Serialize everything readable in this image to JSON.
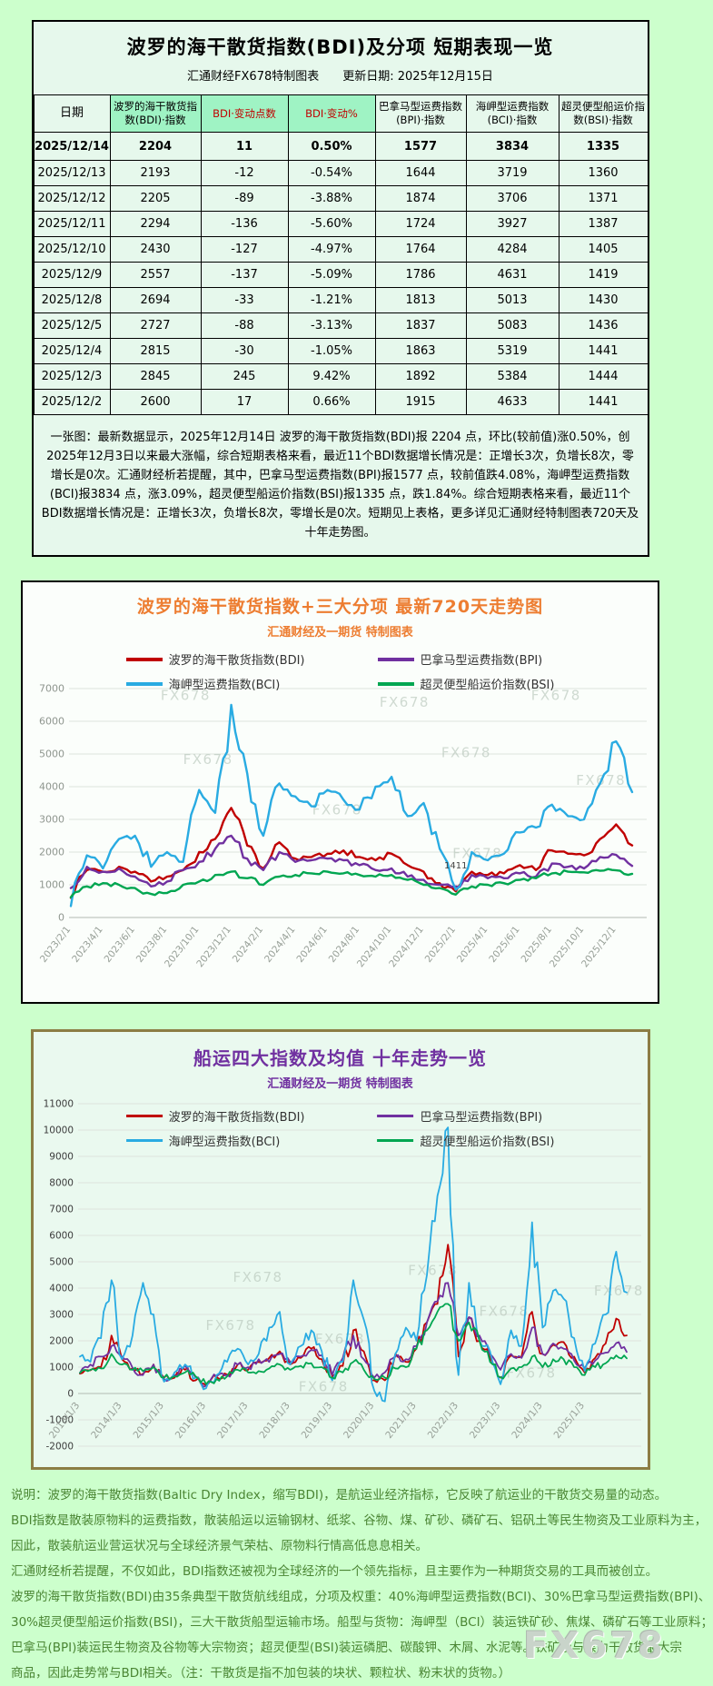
{
  "page": {
    "background": "#ccffcc",
    "watermark": "FX678"
  },
  "table_section": {
    "title": "波罗的海干散货指数(BDI)及分项 短期表现一览",
    "subtitle": "汇通财经FX678特制图表　　更新日期: 2025年12月15日",
    "headers": [
      "日期",
      "波罗的海干散货指数(BDI)·指数",
      "BDI·变动点数",
      "BDI·变动%",
      "巴拿马型运费指数(BPI)·指数",
      "海岬型运费指数(BCI)·指数",
      "超灵便型船运价指数(BSI)·指数"
    ],
    "rows": [
      [
        "2025/12/14",
        "2204",
        "11",
        "0.50%",
        "1577",
        "3834",
        "1335"
      ],
      [
        "2025/12/13",
        "2193",
        "-12",
        "-0.54%",
        "1644",
        "3719",
        "1360"
      ],
      [
        "2025/12/12",
        "2205",
        "-89",
        "-3.88%",
        "1874",
        "3706",
        "1371"
      ],
      [
        "2025/12/11",
        "2294",
        "-136",
        "-5.60%",
        "1724",
        "3927",
        "1387"
      ],
      [
        "2025/12/10",
        "2430",
        "-127",
        "-4.97%",
        "1764",
        "4284",
        "1405"
      ],
      [
        "2025/12/9",
        "2557",
        "-137",
        "-5.09%",
        "1786",
        "4631",
        "1419"
      ],
      [
        "2025/12/8",
        "2694",
        "-33",
        "-1.21%",
        "1813",
        "5013",
        "1430"
      ],
      [
        "2025/12/5",
        "2727",
        "-88",
        "-3.13%",
        "1837",
        "5083",
        "1436"
      ],
      [
        "2025/12/4",
        "2815",
        "-30",
        "-1.05%",
        "1863",
        "5319",
        "1441"
      ],
      [
        "2025/12/3",
        "2845",
        "245",
        "9.42%",
        "1892",
        "5384",
        "1444"
      ],
      [
        "2025/12/2",
        "2600",
        "17",
        "0.66%",
        "1915",
        "4633",
        "1441"
      ]
    ],
    "note": "一张图：最新数据显示，2025年12月14日 波罗的海干散货指数(BDI)报 2204 点，环比(较前值)涨0.50%，创2025年12月3日以来最大涨幅，综合短期表格来看，最近11个BDI数据增长情况是：正增长3次，负增长8次，零增长是0次。汇通财经析若提醒，其中，巴拿马型运费指数(BPI)报1577 点，较前值跌4.08%，海岬型运费指数(BCI)报3834 点，涨3.09%，超灵便型船运价指数(BSI)报1335 点，跌1.84%。综合短期表格来看，最近11个BDI数据增长情况是：正增长3次，负增长8次，零增长是0次。短期见上表格，更多详见汇通财经特制图表720天及十年走势图。"
  },
  "chart_data": [
    {
      "id": "chart720",
      "type": "line",
      "title": "波罗的海干散货指数+三大分项  最新720天走势图",
      "subtitle": "汇通财经及一期货 特制图表",
      "ylim": [
        0,
        7000
      ],
      "ytick_step": 1000,
      "grid": true,
      "legend_position": "top",
      "floor": 80,
      "x_tick_every": 2,
      "x_tick_labels": [
        "2023/2/1",
        "2023/4/1",
        "2023/6/1",
        "2023/8/1",
        "2023/10/1",
        "2023/12/1",
        "2024/2/1",
        "2024/4/1",
        "2024/6/1",
        "2024/8/1",
        "2024/10/1",
        "2024/12/1",
        "2025/2/1",
        "2025/4/1",
        "2025/6/1",
        "2025/8/1",
        "2025/10/1",
        "2025/12/1"
      ],
      "annotation": {
        "text": "1411",
        "x_index": 24,
        "y": 1500
      },
      "series": [
        {
          "name": "波罗的海干散货指数(BDI)",
          "color": "#c00000",
          "values": [
            600,
            1450,
            1400,
            1550,
            1400,
            1100,
            1250,
            1450,
            2000,
            2400,
            3350,
            2200,
            1500,
            2300,
            1800,
            1850,
            1950,
            2050,
            1850,
            1750,
            1950,
            1600,
            1400,
            1050,
            800,
            1400,
            1300,
            1350,
            1600,
            1450,
            2050,
            1950,
            1900,
            2400,
            2845,
            2204
          ]
        },
        {
          "name": "巴拿马型运费指数(BPI)",
          "color": "#7030a0",
          "values": [
            900,
            1550,
            1400,
            1500,
            1250,
            950,
            1100,
            1450,
            1700,
            2100,
            2500,
            1800,
            1450,
            2000,
            1700,
            1750,
            1800,
            1750,
            1600,
            1450,
            1500,
            1250,
            1150,
            1000,
            950,
            1300,
            1200,
            1200,
            1350,
            1250,
            1650,
            1550,
            1500,
            1850,
            1915,
            1577
          ]
        },
        {
          "name": "海岬型运费指数(BCI)",
          "color": "#29abe2",
          "values": [
            350,
            1900,
            1500,
            2400,
            2500,
            1550,
            2000,
            1700,
            3900,
            3200,
            6500,
            4400,
            2500,
            4100,
            3700,
            3400,
            3900,
            3600,
            3300,
            4000,
            4300,
            3100,
            3500,
            2100,
            850,
            2000,
            1750,
            1950,
            2600,
            2750,
            3450,
            3100,
            3000,
            4100,
            5384,
            3834
          ]
        },
        {
          "name": "超灵便型船运价指数(BSI)",
          "color": "#00a651",
          "values": [
            620,
            950,
            1050,
            1000,
            900,
            720,
            750,
            1000,
            1100,
            1300,
            1400,
            1200,
            1000,
            1250,
            1300,
            1350,
            1400,
            1350,
            1300,
            1250,
            1300,
            1150,
            1000,
            900,
            700,
            950,
            1000,
            1050,
            1150,
            1200,
            1350,
            1400,
            1380,
            1430,
            1444,
            1335
          ]
        }
      ]
    },
    {
      "id": "chart10y",
      "type": "line",
      "title": "船运四大指数及均值 十年走势一览",
      "subtitle": "汇通财经及一期货 特制图表",
      "ylim": [
        -2000,
        11000
      ],
      "ytick_step": 1000,
      "grid": true,
      "legend_position": "top-inside",
      "floor": -450,
      "x_tick_every": 4,
      "x_tick_labels": [
        "2013/1/3",
        "2014/1/3",
        "2015/1/3",
        "2016/1/3",
        "2017/1/3",
        "2018/1/3",
        "2019/1/3",
        "2020/1/3",
        "2021/1/3",
        "2022/1/3",
        "2023/1/3",
        "2024/1/3",
        "2025/1/3"
      ],
      "series": [
        {
          "name": "波罗的海干散货指数(BDI)",
          "color": "#c00000",
          "values": [
            750,
            880,
            1000,
            2200,
            1300,
            950,
            750,
            1100,
            600,
            600,
            900,
            500,
            300,
            620,
            720,
            1100,
            900,
            1200,
            1350,
            1600,
            1100,
            1350,
            1700,
            1300,
            650,
            1050,
            2400,
            1600,
            500,
            500,
            1500,
            1200,
            1700,
            2700,
            3400,
            5650,
            1400,
            2900,
            2000,
            1350,
            600,
            1450,
            1400,
            3100,
            1500,
            1850,
            1950,
            1400,
            800,
            1350,
            1900,
            2845,
            2204
          ]
        },
        {
          "name": "巴拿马型运费指数(BPI)",
          "color": "#7030a0",
          "values": [
            780,
            1100,
            1400,
            1800,
            1400,
            980,
            700,
            1100,
            550,
            700,
            1050,
            600,
            300,
            650,
            700,
            1100,
            1000,
            1300,
            1200,
            1500,
            1200,
            1400,
            1650,
            1450,
            700,
            1350,
            2200,
            1300,
            600,
            800,
            1400,
            1300,
            1800,
            2700,
            3500,
            4200,
            2200,
            2900,
            2200,
            1500,
            900,
            1500,
            1350,
            2500,
            1500,
            1900,
            1700,
            1250,
            950,
            1250,
            1550,
            1915,
            1577
          ]
        },
        {
          "name": "海岬型运费指数(BCI)",
          "color": "#29abe2",
          "values": [
            1400,
            1200,
            2100,
            4300,
            1300,
            2200,
            4200,
            3000,
            450,
            800,
            1100,
            600,
            200,
            700,
            1200,
            1700,
            1100,
            1500,
            2500,
            3100,
            1100,
            1800,
            2400,
            1600,
            500,
            1200,
            4300,
            2800,
            100,
            -300,
            1500,
            2500,
            2000,
            4500,
            7500,
            10100,
            700,
            4200,
            2000,
            1600,
            350,
            2400,
            1800,
            6500,
            2500,
            3900,
            3600,
            2100,
            850,
            1900,
            3000,
            5384,
            3834
          ]
        },
        {
          "name": "超灵便型船运价指数(BSI)",
          "color": "#00a651",
          "values": [
            780,
            900,
            950,
            1500,
            1100,
            900,
            850,
            1000,
            600,
            650,
            800,
            650,
            350,
            550,
            650,
            900,
            800,
            850,
            950,
            1100,
            900,
            1050,
            1150,
            1000,
            600,
            800,
            1200,
            900,
            550,
            600,
            950,
            1000,
            1700,
            2400,
            3100,
            3400,
            2000,
            2700,
            2000,
            1200,
            620,
            950,
            1000,
            1400,
            1000,
            1300,
            1300,
            1000,
            700,
            1000,
            1150,
            1444,
            1335
          ]
        }
      ]
    }
  ],
  "footer": {
    "lines": [
      "说明：波罗的海干散货指数(Baltic Dry Index，缩写BDI)，是航运业经济指标，它反映了航运业的干散货交易量的动态。",
      "BDI指数是散装原物料的运费指数，散装船运以运输钢材、纸浆、谷物、煤、矿砂、磷矿石、铝矾土等民生物资及工业原料为主，",
      "因此，散装航运业营运状况与全球经济景气荣枯、原物料行情高低息息相关。",
      "汇通财经析若提醒，不仅如此，BDI指数还被视为全球经济的一个领先指标，且主要作为一种期货交易的工具而被创立。",
      "波罗的海干散货指数(BDI)由35条典型干散货航线组成，分项及权重：40%海岬型运费指数(BCI)、30%巴拿马型运费指数(BPI)、",
      "30%超灵便型船运价指数(BSI)，三大干散货船型运输市场。船型与货物：海岬型（BCI）装运铁矿砂、焦煤、磷矿石等工业原料；",
      "巴拿马(BPI)装运民生物资及谷物等大宗物资；超灵便型(BSI)装运磷肥、碳酸钾、木屑、水泥等。铁矿砂与煤为干散货最大宗",
      "商品，因此走势常与BDI相关。（注：干散货是指不加包装的块状、颗粒状、粉末状的货物。）"
    ]
  }
}
